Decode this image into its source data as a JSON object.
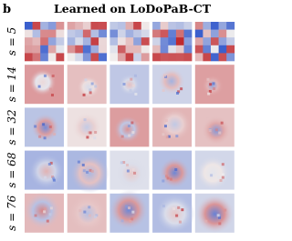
{
  "panel_label": "b",
  "title": "Learned on LoDoPaB-CT",
  "rows": [
    {
      "label": "s = 5"
    },
    {
      "label": "s = 14"
    },
    {
      "label": "s = 32"
    },
    {
      "label": "s = 68"
    },
    {
      "label": "s = 76"
    }
  ]
}
